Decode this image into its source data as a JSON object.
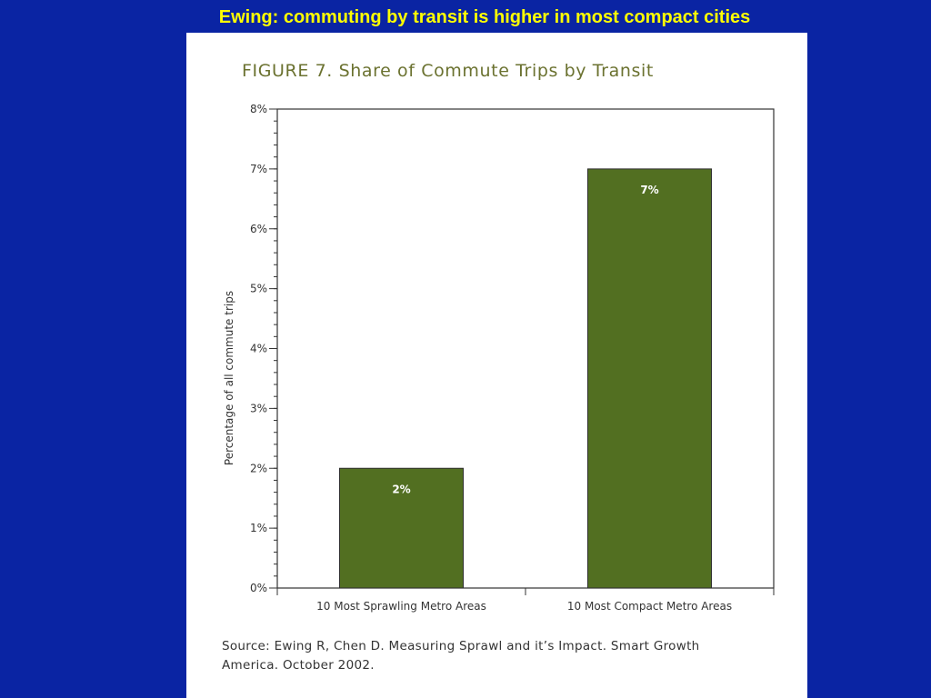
{
  "slide": {
    "title": "Ewing: commuting by transit is higher in most compact cities",
    "title_color": "#FFFF00",
    "background_color": "#0A24A3"
  },
  "figure": {
    "source_line1": "Source: Ewing R, Chen D. Measuring Sprawl and it’s Impact. Smart Growth",
    "source_line2": "America. October 2002."
  },
  "chart_data": {
    "type": "bar",
    "title": "FIGURE 7. Share of Commute Trips by Transit",
    "ylabel": "Percentage of all commute trips",
    "xlabel": "",
    "categories": [
      "10 Most Sprawling Metro Areas",
      "10 Most Compact Metro Areas"
    ],
    "values": [
      2,
      7
    ],
    "data_labels": [
      "2%",
      "7%"
    ],
    "ylim": [
      0,
      8
    ],
    "yticks": [
      0,
      1,
      2,
      3,
      4,
      5,
      6,
      7,
      8
    ],
    "ytick_labels": [
      "0%",
      "1%",
      "2%",
      "3%",
      "4%",
      "5%",
      "6%",
      "7%",
      "8%"
    ],
    "bar_color": "#526F21",
    "grid": false,
    "legend": false
  }
}
